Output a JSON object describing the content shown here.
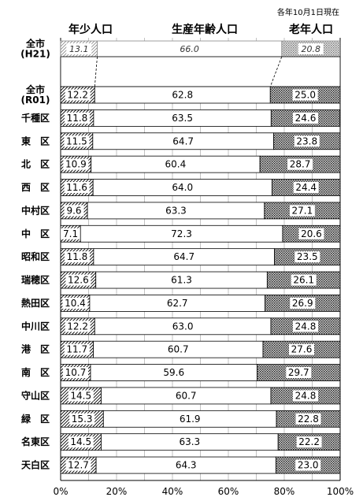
{
  "chart_data": {
    "type": "bar",
    "stacked": true,
    "orientation": "horizontal",
    "note": "各年10月1日現在",
    "series_labels": [
      "年少人口",
      "生産年齢人口",
      "老年人口"
    ],
    "xlim": [
      0,
      100
    ],
    "x_ticks": [
      "0%",
      "20%",
      "40%",
      "60%",
      "80%",
      "100%"
    ],
    "reference": {
      "category": "全市\n(H21)",
      "values": [
        13.1,
        66.0,
        20.8
      ],
      "labels": [
        "13.1",
        "66.0",
        "20.8"
      ]
    },
    "categories": [
      "全市\n(R01)",
      "千種区",
      "東　区",
      "北　区",
      "西　区",
      "中村区",
      "中　区",
      "昭和区",
      "瑞穂区",
      "熱田区",
      "中川区",
      "港　区",
      "南　区",
      "守山区",
      "緑　区",
      "名東区",
      "天白区"
    ],
    "series": [
      {
        "values": [
          12.2,
          11.8,
          11.5,
          10.9,
          11.6,
          9.6,
          7.1,
          11.8,
          12.6,
          10.4,
          12.2,
          11.7,
          10.7,
          14.5,
          15.3,
          14.5,
          12.7
        ],
        "labels": [
          "12.2",
          "11.8",
          "11.5",
          "10.9",
          "11.6",
          "9.6",
          "7.1",
          "11.8",
          "12.6",
          "10.4",
          "12.2",
          "11.7",
          "10.7",
          "14.5",
          "15.3",
          "14.5",
          "12.7"
        ]
      },
      {
        "values": [
          62.8,
          63.5,
          64.7,
          60.4,
          64.0,
          63.3,
          72.3,
          64.7,
          61.3,
          62.7,
          63.0,
          60.7,
          59.6,
          60.7,
          61.9,
          63.3,
          64.3
        ],
        "labels": [
          "62.8",
          "63.5",
          "64.7",
          "60.4",
          "64.0",
          "63.3",
          "72.3",
          "64.7",
          "61.3",
          "62.7",
          "63.0",
          "60.7",
          "59.6",
          "60.7",
          "61.9",
          "63.3",
          "64.3"
        ]
      },
      {
        "values": [
          25.0,
          24.6,
          23.8,
          28.7,
          24.4,
          27.1,
          20.6,
          23.5,
          26.1,
          26.9,
          24.8,
          27.6,
          29.7,
          24.8,
          22.8,
          22.2,
          23.0
        ],
        "labels": [
          "25.0",
          "24.6",
          "23.8",
          "28.7",
          "24.4",
          "27.1",
          "20.6",
          "23.5",
          "26.1",
          "26.9",
          "24.8",
          "27.6",
          "29.7",
          "24.8",
          "22.8",
          "22.2",
          "23.0"
        ]
      }
    ]
  }
}
